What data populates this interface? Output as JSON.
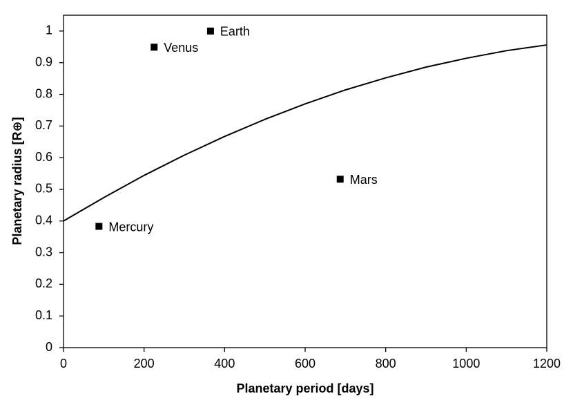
{
  "chart_data": {
    "type": "scatter",
    "x_label": "Planetary period [days]",
    "y_label": "Planetary radius [R⊕]",
    "xlim": [
      0,
      1200
    ],
    "ylim": [
      0,
      1.05
    ],
    "xticks": [
      0,
      200,
      400,
      600,
      800,
      1000,
      1200
    ],
    "yticks": [
      0,
      0.1,
      0.2,
      0.3,
      0.4,
      0.5,
      0.6,
      0.7,
      0.8,
      0.9,
      1
    ],
    "color": "#000000",
    "points": {
      "labels": [
        "Mercury",
        "Venus",
        "Earth",
        "Mars"
      ],
      "x": [
        88,
        225,
        365,
        687
      ],
      "values": [
        0.383,
        0.949,
        1.0,
        0.532
      ]
    },
    "curve": {
      "x": [
        0,
        100,
        200,
        300,
        400,
        500,
        600,
        700,
        800,
        900,
        1000,
        1100,
        1200
      ],
      "values": [
        0.4,
        0.474,
        0.544,
        0.608,
        0.667,
        0.721,
        0.77,
        0.814,
        0.852,
        0.886,
        0.914,
        0.938,
        0.956
      ]
    }
  }
}
